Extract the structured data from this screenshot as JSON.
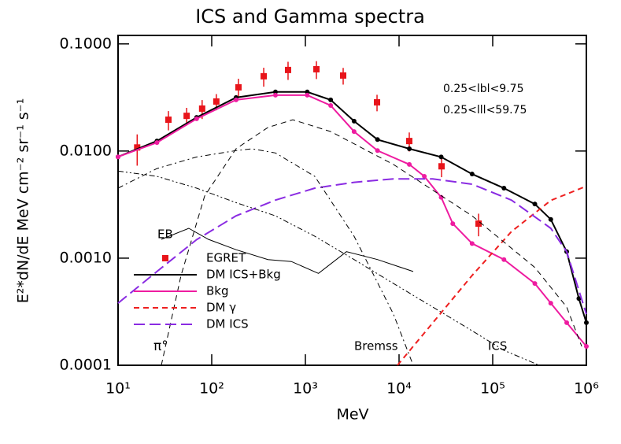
{
  "chart_data": {
    "type": "line",
    "title": "ICS and Gamma spectra",
    "x_label": "MeV",
    "y_label": "E²*dN/dE MeV cm⁻² sr⁻¹ s⁻¹",
    "xscale": "log",
    "yscale": "log",
    "xlim": [
      10,
      1000000
    ],
    "ylim": [
      0.0001,
      0.12
    ],
    "xticks": [
      {
        "value": 10,
        "label": "10¹"
      },
      {
        "value": 100,
        "label": "10²"
      },
      {
        "value": 1000,
        "label": "10³"
      },
      {
        "value": 10000,
        "label": "10⁴"
      },
      {
        "value": 100000,
        "label": "10⁵"
      },
      {
        "value": 1000000,
        "label": "10⁶"
      }
    ],
    "yticks": [
      0.0001,
      {
        "value": 0.001,
        "label": "0.0010"
      },
      {
        "value": 0.01,
        "label": "0.0100"
      },
      {
        "value": 0.1,
        "label": "0.1000"
      }
    ],
    "annotations": [
      "0.25<lbl<9.75",
      "0.25<lll<59.75",
      "EB",
      "π°",
      "Bremss",
      "ICS"
    ],
    "series": [
      {
        "name": "EGRET",
        "color": "#e8141a",
        "style": "points",
        "x": [
          16,
          34.5,
          54,
          79,
          112,
          193,
          359,
          653,
          1312,
          2532,
          5820,
          12860,
          28440,
          70600
        ],
        "values": [
          0.0108,
          0.0196,
          0.0213,
          0.0249,
          0.029,
          0.0393,
          0.0499,
          0.0571,
          0.058,
          0.0507,
          0.0285,
          0.0124,
          0.0072,
          0.0021
        ],
        "errors": [
          0.0035,
          0.004,
          0.004,
          0.005,
          0.005,
          0.008,
          0.01,
          0.011,
          0.011,
          0.009,
          0.005,
          0.0025,
          0.0015,
          0.0005
        ]
      },
      {
        "name": "DM ICS+Bkg",
        "color": "#000000",
        "style": "solid",
        "markers": true,
        "x": [
          10,
          26,
          69,
          182,
          479,
          1047,
          1862,
          3311,
          5888,
          12880,
          28180,
          60260,
          131800,
          281800,
          416900,
          616600,
          831800,
          1000000
        ],
        "values": [
          0.00883,
          0.0124,
          0.0206,
          0.0316,
          0.0356,
          0.0356,
          0.03,
          0.019,
          0.0128,
          0.0105,
          0.0088,
          0.0061,
          0.0045,
          0.0032,
          0.0023,
          0.00115,
          0.00042,
          0.00025
        ]
      },
      {
        "name": "Bkg",
        "color": "#ee1ca0",
        "style": "solid",
        "markers": true,
        "x": [
          10,
          26,
          69,
          182,
          479,
          1047,
          1862,
          3311,
          5888,
          12880,
          18620,
          28180,
          37460,
          60260,
          131800,
          281800,
          416900,
          616600,
          1000000
        ],
        "values": [
          0.00883,
          0.012,
          0.02,
          0.03,
          0.0332,
          0.0332,
          0.0266,
          0.0152,
          0.0101,
          0.0075,
          0.0058,
          0.0037,
          0.0021,
          0.00137,
          0.00097,
          0.00058,
          0.00038,
          0.00025,
          0.00015
        ]
      },
      {
        "name": "DM γ",
        "color": "#ee2020",
        "style": "dashed",
        "x": [
          9616,
          22960,
          60260,
          158500,
          416900,
          1000000
        ],
        "values": [
          0.0001,
          0.00025,
          0.00069,
          0.00177,
          0.00346,
          0.0047
        ]
      },
      {
        "name": "DM ICS",
        "color": "#8a2be2",
        "style": "longdash",
        "x": [
          10,
          26,
          69,
          182,
          479,
          1259,
          3311,
          8710,
          22910,
          60260,
          158500,
          416900,
          616600,
          1000000
        ],
        "values": [
          0.00038,
          0.00075,
          0.00149,
          0.00248,
          0.00348,
          0.0045,
          0.0051,
          0.0055,
          0.0055,
          0.0049,
          0.00348,
          0.0019,
          0.00115,
          0.0003
        ]
      },
      {
        "color": "#000000",
        "style": "dashed",
        "x": [
          29,
          47,
          84,
          182,
          398,
          734,
          1862,
          8710,
          60260,
          281800,
          616600,
          891300
        ],
        "values": [
          0.0001,
          0.00069,
          0.0038,
          0.0105,
          0.0166,
          0.0196,
          0.0152,
          0.0075,
          0.00248,
          0.00082,
          0.00035,
          0.00015
        ]
      },
      {
        "color": "#000000",
        "style": "dashdot",
        "x": [
          10,
          26,
          69,
          182,
          269,
          479,
          1259,
          3311,
          8710,
          14160
        ],
        "values": [
          0.0045,
          0.00686,
          0.0088,
          0.0101,
          0.0105,
          0.0096,
          0.0058,
          0.0016,
          0.0003,
          0.0001
        ]
      },
      {
        "color": "#000000",
        "style": "dashdotdot",
        "x": [
          10,
          26,
          69,
          182,
          479,
          1259,
          3311,
          8710,
          22910,
          60260,
          131800,
          313300
        ],
        "values": [
          0.0065,
          0.0058,
          0.0045,
          0.0033,
          0.00248,
          0.0016,
          0.00097,
          0.00058,
          0.00035,
          0.00021,
          0.000138,
          0.0001
        ]
      },
      {
        "color": "#000000",
        "style": "solid",
        "x": [
          29,
          57,
          92,
          182,
          398,
          708,
          1380,
          2748,
          5888,
          14160
        ],
        "values": [
          0.0015,
          0.0019,
          0.0015,
          0.0012,
          0.00097,
          0.00093,
          0.00072,
          0.00115,
          0.00097,
          0.00075
        ]
      }
    ]
  }
}
